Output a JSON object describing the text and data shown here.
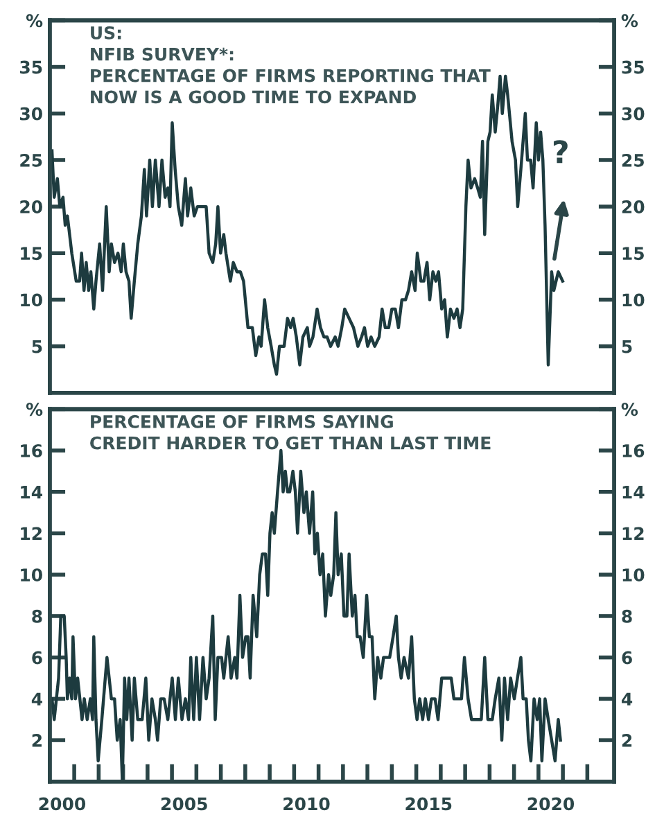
{
  "chart_data": [
    {
      "type": "line",
      "title": "US:\nNFIB SURVEY*:\nPERCENTAGE OF FIRMS REPORTING THAT\nNOW IS A GOOD TIME TO EXPAND",
      "xlim": [
        2000,
        2023.1
      ],
      "ylim": [
        0,
        40
      ],
      "yticks": [
        5,
        10,
        15,
        20,
        25,
        30,
        35,
        {
          "value": 40,
          "label": "%"
        }
      ],
      "y2lim": [
        0,
        40
      ],
      "y2ticks": [
        5,
        10,
        15,
        20,
        25,
        30,
        35,
        {
          "value": 40,
          "label": "%"
        }
      ],
      "tick_labels": "y",
      "annotations": [
        "?"
      ],
      "series": [
        {
          "color": "#1d3b3f",
          "x": [
            2000.09,
            2000.18,
            2000.31,
            2000.41,
            2000.54,
            2000.63,
            2000.72,
            2000.9,
            2001.08,
            2001.22,
            2001.3,
            2001.4,
            2001.49,
            2001.59,
            2001.68,
            2001.8,
            2001.89,
            2002.04,
            2002.16,
            2002.31,
            2002.43,
            2002.52,
            2002.65,
            2002.79,
            2002.92,
            2003.01,
            2003.12,
            2003.24,
            2003.33,
            2003.46,
            2003.6,
            2003.75,
            2003.87,
            2003.96,
            2004.09,
            2004.2,
            2004.32,
            2004.47,
            2004.59,
            2004.72,
            2004.83,
            2004.92,
            2005.01,
            2005.13,
            2005.26,
            2005.4,
            2005.55,
            2005.64,
            2005.77,
            2005.91,
            2006.04,
            2006.22,
            2006.4,
            2006.52,
            2006.67,
            2006.79,
            2006.88,
            2006.99,
            2007.12,
            2007.21,
            2007.39,
            2007.51,
            2007.66,
            2007.8,
            2007.93,
            2008.11,
            2008.29,
            2008.43,
            2008.56,
            2008.65,
            2008.79,
            2008.92,
            2009.06,
            2009.19,
            2009.28,
            2009.4,
            2009.59,
            2009.73,
            2009.86,
            2009.96,
            2010.09,
            2010.23,
            2010.36,
            2010.54,
            2010.63,
            2010.77,
            2010.94,
            2011.08,
            2011.22,
            2011.35,
            2011.49,
            2011.68,
            2011.8,
            2011.95,
            2012.07,
            2012.25,
            2012.43,
            2012.61,
            2012.76,
            2012.88,
            2013.01,
            2013.15,
            2013.3,
            2013.48,
            2013.6,
            2013.73,
            2013.87,
            2014.0,
            2014.14,
            2014.27,
            2014.41,
            2014.56,
            2014.68,
            2014.81,
            2014.95,
            2015.04,
            2015.19,
            2015.31,
            2015.44,
            2015.55,
            2015.68,
            2015.8,
            2015.91,
            2016.04,
            2016.16,
            2016.27,
            2016.4,
            2016.54,
            2016.67,
            2016.79,
            2016.9,
            2017.03,
            2017.12,
            2017.24,
            2017.39,
            2017.51,
            2017.62,
            2017.71,
            2017.8,
            2017.93,
            2018.02,
            2018.11,
            2018.23,
            2018.34,
            2018.43,
            2018.52,
            2018.65,
            2018.74,
            2018.92,
            2019.06,
            2019.15,
            2019.28,
            2019.46,
            2019.55,
            2019.68,
            2019.78,
            2019.91,
            2020.0,
            2020.09,
            2020.18,
            2020.27,
            2020.4,
            2020.54,
            2020.63,
            2020.81,
            2020.99
          ],
          "values": [
            26,
            21,
            23,
            20,
            21,
            18,
            19,
            15,
            12,
            12,
            15,
            11,
            14,
            11,
            13,
            9,
            12,
            16,
            11,
            20,
            13,
            16,
            14,
            15,
            13,
            16,
            13,
            12,
            8,
            12,
            16,
            19,
            24,
            19,
            25,
            20,
            25,
            20,
            25,
            21,
            22,
            20,
            29,
            24,
            20,
            18,
            23,
            19,
            22,
            19,
            20,
            20,
            20,
            15,
            14,
            16,
            20,
            15,
            17,
            15,
            12,
            14,
            13,
            13,
            12,
            7,
            7,
            4,
            6,
            5,
            10,
            7,
            5,
            3,
            2,
            5,
            5,
            8,
            7,
            8,
            6,
            3,
            6,
            7,
            5,
            6,
            9,
            7,
            6,
            6,
            5,
            6,
            5,
            7,
            9,
            8,
            7,
            5,
            6,
            7,
            5,
            6,
            5,
            6,
            9,
            7,
            7,
            9,
            9,
            7,
            10,
            10,
            11,
            13,
            11,
            15,
            12,
            12,
            14,
            10,
            13,
            12,
            13,
            9,
            10,
            6,
            9,
            8,
            9,
            7,
            9,
            20,
            25,
            22,
            23,
            22,
            21,
            27,
            17,
            27,
            28,
            32,
            28,
            31,
            34,
            30,
            34,
            32,
            27,
            25,
            20,
            24,
            30,
            25,
            25,
            22,
            29,
            25,
            28,
            25,
            18,
            3,
            13,
            11,
            13,
            12
          ]
        }
      ]
    },
    {
      "type": "line",
      "title": "PERCENTAGE OF FIRMS SAYING\nCREDIT HARDER TO GET THAN LAST TIME",
      "xlim": [
        2000,
        2023.1
      ],
      "ylim": [
        0,
        18
      ],
      "yticks": [
        2,
        4,
        6,
        8,
        10,
        12,
        14,
        16,
        {
          "value": 18,
          "label": "%"
        }
      ],
      "y2lim": [
        0,
        18
      ],
      "y2ticks": [
        2,
        4,
        6,
        8,
        10,
        12,
        14,
        16,
        {
          "value": 18,
          "label": "%"
        }
      ],
      "xticks": [
        {
          "value": 2000.5,
          "label": "2000"
        },
        {
          "value": 2005.5,
          "label": "2005"
        },
        {
          "value": 2010.5,
          "label": "2010"
        },
        {
          "value": 2015.5,
          "label": "2015"
        },
        {
          "value": 2020.5,
          "label": "2020"
        },
        {
          "value": 2001,
          "label": null
        },
        {
          "value": 2002,
          "label": null
        },
        {
          "value": 2003,
          "label": null
        },
        {
          "value": 2004,
          "label": null
        },
        {
          "value": 2005,
          "label": null
        },
        {
          "value": 2006,
          "label": null
        },
        {
          "value": 2007,
          "label": null
        },
        {
          "value": 2008,
          "label": null
        },
        {
          "value": 2009,
          "label": null
        },
        {
          "value": 2010,
          "label": null
        },
        {
          "value": 2011,
          "label": null
        },
        {
          "value": 2012,
          "label": null
        },
        {
          "value": 2013,
          "label": null
        },
        {
          "value": 2014,
          "label": null
        },
        {
          "value": 2015,
          "label": null
        },
        {
          "value": 2016,
          "label": null
        },
        {
          "value": 2017,
          "label": null
        },
        {
          "value": 2018,
          "label": null
        },
        {
          "value": 2019,
          "label": null
        },
        {
          "value": 2020,
          "label": null
        },
        {
          "value": 2021,
          "label": null
        },
        {
          "value": 2022,
          "label": null
        }
      ],
      "series": [
        {
          "color": "#1d3b3f",
          "x": [
            2000.09,
            2000.18,
            2000.27,
            2000.36,
            2000.45,
            2000.59,
            2000.67,
            2000.72,
            2000.81,
            2000.9,
            2000.95,
            2001.05,
            2001.14,
            2001.23,
            2001.32,
            2001.41,
            2001.53,
            2001.66,
            2001.75,
            2001.8,
            2001.89,
            2001.98,
            2002.13,
            2002.34,
            2002.52,
            2002.65,
            2002.76,
            2002.88,
            2002.97,
            2003.06,
            2003.15,
            2003.24,
            2003.37,
            2003.46,
            2003.6,
            2003.78,
            2003.93,
            2004.05,
            2004.18,
            2004.32,
            2004.41,
            2004.54,
            2004.68,
            2004.83,
            2005.01,
            2005.14,
            2005.26,
            2005.41,
            2005.55,
            2005.68,
            2005.77,
            2005.89,
            2006.0,
            2006.13,
            2006.27,
            2006.4,
            2006.52,
            2006.67,
            2006.77,
            2006.88,
            2007.03,
            2007.12,
            2007.3,
            2007.42,
            2007.57,
            2007.66,
            2007.78,
            2007.89,
            2008.02,
            2008.11,
            2008.2,
            2008.32,
            2008.47,
            2008.59,
            2008.7,
            2008.83,
            2008.92,
            2009.01,
            2009.1,
            2009.19,
            2009.32,
            2009.46,
            2009.55,
            2009.64,
            2009.73,
            2009.82,
            2009.95,
            2010.05,
            2010.14,
            2010.27,
            2010.4,
            2010.5,
            2010.63,
            2010.76,
            2010.85,
            2010.95,
            2011.06,
            2011.17,
            2011.28,
            2011.41,
            2011.5,
            2011.62,
            2011.71,
            2011.8,
            2011.93,
            2012.04,
            2012.16,
            2012.25,
            2012.38,
            2012.49,
            2012.58,
            2012.7,
            2012.83,
            2012.97,
            2013.08,
            2013.19,
            2013.3,
            2013.42,
            2013.55,
            2013.66,
            2013.78,
            2013.91,
            2014.05,
            2014.18,
            2014.27,
            2014.38,
            2014.5,
            2014.68,
            2014.81,
            2014.92,
            2015.03,
            2015.14,
            2015.26,
            2015.37,
            2015.5,
            2015.62,
            2015.77,
            2015.89,
            2016.04,
            2016.22,
            2016.43,
            2016.54,
            2016.67,
            2016.85,
            2016.97,
            2017.12,
            2017.26,
            2017.48,
            2017.66,
            2017.8,
            2017.93,
            2018.11,
            2018.23,
            2018.38,
            2018.5,
            2018.61,
            2018.74,
            2018.86,
            2019.01,
            2019.14,
            2019.28,
            2019.37,
            2019.5,
            2019.59,
            2019.69,
            2019.82,
            2019.95,
            2020.05,
            2020.14,
            2020.27,
            2020.4,
            2020.54,
            2020.68,
            2020.81,
            2020.9
          ],
          "values": [
            4,
            3,
            4,
            5,
            8,
            8,
            6,
            4,
            5,
            4,
            7,
            4,
            5,
            4,
            3,
            4,
            3,
            4,
            3,
            7,
            3,
            1,
            3,
            6,
            4,
            4,
            2,
            3,
            0,
            5,
            3,
            5,
            2,
            5,
            3,
            3,
            5,
            2,
            4,
            3,
            2,
            4,
            4,
            3,
            5,
            3,
            5,
            3,
            4,
            3,
            6,
            3,
            6,
            3,
            6,
            4,
            5,
            8,
            3,
            6,
            6,
            5,
            7,
            5,
            6,
            5,
            9,
            6,
            7,
            7,
            5,
            9,
            7,
            10,
            11,
            11,
            9,
            12,
            13,
            12,
            14,
            16,
            14,
            15,
            14,
            14,
            15,
            14,
            12,
            15,
            13,
            14,
            12,
            14,
            11,
            12,
            10,
            11,
            8,
            10,
            9,
            10,
            13,
            10,
            11,
            8,
            8,
            11,
            8,
            9,
            7,
            7,
            6,
            9,
            7,
            7,
            4,
            6,
            5,
            6,
            6,
            6,
            7,
            8,
            6,
            5,
            6,
            5,
            7,
            4,
            3,
            4,
            3,
            4,
            3,
            4,
            4,
            3,
            5,
            5,
            5,
            4,
            4,
            4,
            6,
            4,
            3,
            3,
            3,
            6,
            3,
            3,
            4,
            5,
            2,
            5,
            3,
            5,
            4,
            5,
            6,
            4,
            4,
            2,
            1,
            4,
            3,
            4,
            1,
            4,
            3,
            2,
            1,
            3,
            2
          ]
        }
      ]
    }
  ]
}
